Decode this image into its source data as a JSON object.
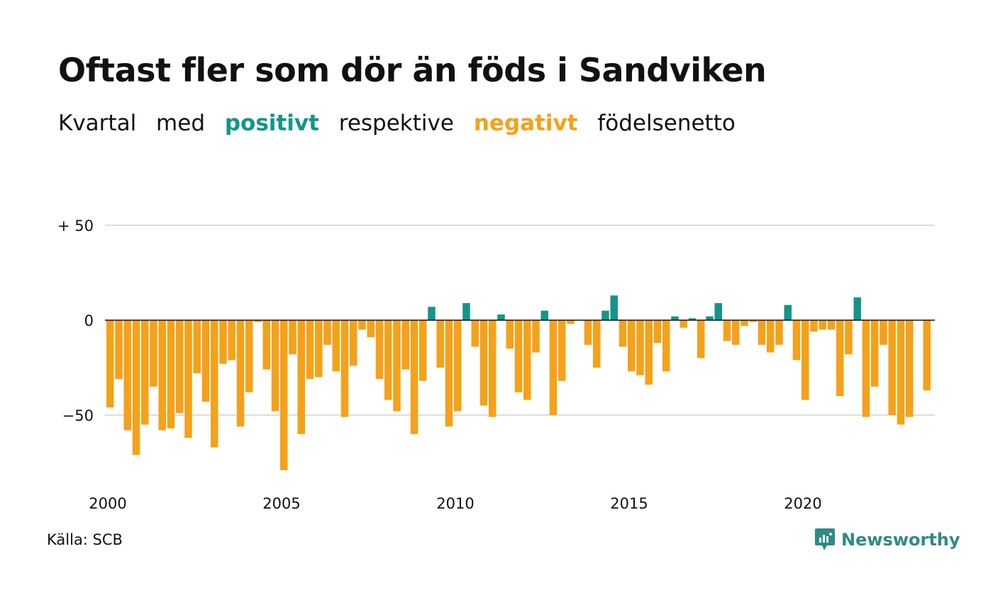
{
  "title": "Oftast fler som dör än föds i Sandviken",
  "subtitle": {
    "w1": "Kvartal",
    "w2": "med",
    "positive": "positivt",
    "w3": "respektive",
    "negative": "negativt",
    "w4": "födelsenetto"
  },
  "colors": {
    "positive": "#13958a",
    "negative": "#f5a11a",
    "grid": "#dddddd",
    "zero": "#111111"
  },
  "source": "Källa: SCB",
  "brand": {
    "name": "Newsworthy",
    "icon": "newsworthy-logo-icon"
  },
  "chart_data": {
    "type": "bar",
    "x_start": "2000 Q1",
    "ylim": [
      -82,
      53
    ],
    "y_ticks": [
      {
        "value": 50,
        "label": "+ 50"
      },
      {
        "value": 0,
        "label": "0"
      },
      {
        "value": -50,
        "label": "−50"
      }
    ],
    "x_ticks": [
      {
        "year": 2000,
        "label": "2000"
      },
      {
        "year": 2005,
        "label": "2005"
      },
      {
        "year": 2010,
        "label": "2010"
      },
      {
        "year": 2015,
        "label": "2015"
      },
      {
        "year": 2020,
        "label": "2020"
      }
    ],
    "grid": true,
    "values": [
      -46,
      -31,
      -58,
      -71,
      -55,
      -35,
      -58,
      -57,
      -49,
      -62,
      -28,
      -43,
      -67,
      -23,
      -21,
      -56,
      -38,
      -1,
      -26,
      -48,
      -79,
      -18,
      -60,
      -31,
      -30,
      -13,
      -27,
      -51,
      -24,
      -5,
      -9,
      -31,
      -42,
      -48,
      -26,
      -60,
      -32,
      7,
      -25,
      -56,
      -48,
      9,
      -14,
      -45,
      -51,
      3,
      -15,
      -38,
      -42,
      -17,
      5,
      -50,
      -32,
      -2,
      0,
      -13,
      -25,
      5,
      13,
      -14,
      -27,
      -29,
      -34,
      -12,
      -27,
      2,
      -4,
      1,
      -20,
      2,
      9,
      -11,
      -13,
      -3,
      -1,
      -13,
      -17,
      -13,
      8,
      -21,
      -42,
      -6,
      -5,
      -5,
      -40,
      -18,
      12,
      -51,
      -35,
      -13,
      -50,
      -55,
      -51,
      0,
      -37
    ]
  }
}
